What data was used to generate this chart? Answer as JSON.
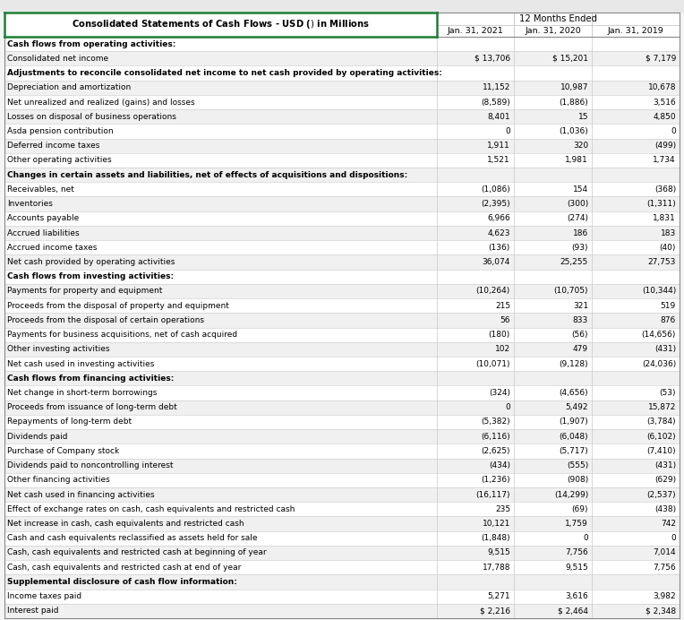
{
  "title": "Consolidated Statements of Cash Flows - USD ($) $ in Millions",
  "col_headers": [
    "Jan. 31, 2021",
    "Jan. 31, 2020",
    "Jan. 31, 2019"
  ],
  "rows": [
    {
      "label": "Cash flows from operating activities:",
      "vals": [
        "",
        "",
        ""
      ],
      "bold": true
    },
    {
      "label": "Consolidated net income",
      "vals": [
        "$ 13,706",
        "$ 15,201",
        "$ 7,179"
      ],
      "bold": false
    },
    {
      "label": "Adjustments to reconcile consolidated net income to net cash provided by operating activities:",
      "vals": [
        "",
        "",
        ""
      ],
      "bold": true
    },
    {
      "label": "Depreciation and amortization",
      "vals": [
        "11,152",
        "10,987",
        "10,678"
      ],
      "bold": false
    },
    {
      "label": "Net unrealized and realized (gains) and losses",
      "vals": [
        "(8,589)",
        "(1,886)",
        "3,516"
      ],
      "bold": false
    },
    {
      "label": "Losses on disposal of business operations",
      "vals": [
        "8,401",
        "15",
        "4,850"
      ],
      "bold": false
    },
    {
      "label": "Asda pension contribution",
      "vals": [
        "0",
        "(1,036)",
        "0"
      ],
      "bold": false
    },
    {
      "label": "Deferred income taxes",
      "vals": [
        "1,911",
        "320",
        "(499)"
      ],
      "bold": false
    },
    {
      "label": "Other operating activities",
      "vals": [
        "1,521",
        "1,981",
        "1,734"
      ],
      "bold": false
    },
    {
      "label": "Changes in certain assets and liabilities, net of effects of acquisitions and dispositions:",
      "vals": [
        "",
        "",
        ""
      ],
      "bold": true
    },
    {
      "label": "Receivables, net",
      "vals": [
        "(1,086)",
        "154",
        "(368)"
      ],
      "bold": false
    },
    {
      "label": "Inventories",
      "vals": [
        "(2,395)",
        "(300)",
        "(1,311)"
      ],
      "bold": false
    },
    {
      "label": "Accounts payable",
      "vals": [
        "6,966",
        "(274)",
        "1,831"
      ],
      "bold": false
    },
    {
      "label": "Accrued liabilities",
      "vals": [
        "4,623",
        "186",
        "183"
      ],
      "bold": false
    },
    {
      "label": "Accrued income taxes",
      "vals": [
        "(136)",
        "(93)",
        "(40)"
      ],
      "bold": false
    },
    {
      "label": "Net cash provided by operating activities",
      "vals": [
        "36,074",
        "25,255",
        "27,753"
      ],
      "bold": false
    },
    {
      "label": "Cash flows from investing activities:",
      "vals": [
        "",
        "",
        ""
      ],
      "bold": true
    },
    {
      "label": "Payments for property and equipment",
      "vals": [
        "(10,264)",
        "(10,705)",
        "(10,344)"
      ],
      "bold": false
    },
    {
      "label": "Proceeds from the disposal of property and equipment",
      "vals": [
        "215",
        "321",
        "519"
      ],
      "bold": false
    },
    {
      "label": "Proceeds from the disposal of certain operations",
      "vals": [
        "56",
        "833",
        "876"
      ],
      "bold": false
    },
    {
      "label": "Payments for business acquisitions, net of cash acquired",
      "vals": [
        "(180)",
        "(56)",
        "(14,656)"
      ],
      "bold": false
    },
    {
      "label": "Other investing activities",
      "vals": [
        "102",
        "479",
        "(431)"
      ],
      "bold": false
    },
    {
      "label": "Net cash used in investing activities",
      "vals": [
        "(10,071)",
        "(9,128)",
        "(24,036)"
      ],
      "bold": false
    },
    {
      "label": "Cash flows from financing activities:",
      "vals": [
        "",
        "",
        ""
      ],
      "bold": true
    },
    {
      "label": "Net change in short-term borrowings",
      "vals": [
        "(324)",
        "(4,656)",
        "(53)"
      ],
      "bold": false
    },
    {
      "label": "Proceeds from issuance of long-term debt",
      "vals": [
        "0",
        "5,492",
        "15,872"
      ],
      "bold": false
    },
    {
      "label": "Repayments of long-term debt",
      "vals": [
        "(5,382)",
        "(1,907)",
        "(3,784)"
      ],
      "bold": false
    },
    {
      "label": "Dividends paid",
      "vals": [
        "(6,116)",
        "(6,048)",
        "(6,102)"
      ],
      "bold": false
    },
    {
      "label": "Purchase of Company stock",
      "vals": [
        "(2,625)",
        "(5,717)",
        "(7,410)"
      ],
      "bold": false
    },
    {
      "label": "Dividends paid to noncontrolling interest",
      "vals": [
        "(434)",
        "(555)",
        "(431)"
      ],
      "bold": false
    },
    {
      "label": "Other financing activities",
      "vals": [
        "(1,236)",
        "(908)",
        "(629)"
      ],
      "bold": false
    },
    {
      "label": "Net cash used in financing activities",
      "vals": [
        "(16,117)",
        "(14,299)",
        "(2,537)"
      ],
      "bold": false
    },
    {
      "label": "Effect of exchange rates on cash, cash equivalents and restricted cash",
      "vals": [
        "235",
        "(69)",
        "(438)"
      ],
      "bold": false
    },
    {
      "label": "Net increase in cash, cash equivalents and restricted cash",
      "vals": [
        "10,121",
        "1,759",
        "742"
      ],
      "bold": false
    },
    {
      "label": "Cash and cash equivalents reclassified as assets held for sale",
      "vals": [
        "(1,848)",
        "0",
        "0"
      ],
      "bold": false
    },
    {
      "label": "Cash, cash equivalents and restricted cash at beginning of year",
      "vals": [
        "9,515",
        "7,756",
        "7,014"
      ],
      "bold": false
    },
    {
      "label": "Cash, cash equivalents and restricted cash at end of year",
      "vals": [
        "17,788",
        "9,515",
        "7,756"
      ],
      "bold": false
    },
    {
      "label": "Supplemental disclosure of cash flow information:",
      "vals": [
        "",
        "",
        ""
      ],
      "bold": true
    },
    {
      "label": "Income taxes paid",
      "vals": [
        "5,271",
        "3,616",
        "3,982"
      ],
      "bold": false
    },
    {
      "label": "Interest paid",
      "vals": [
        "$ 2,216",
        "$ 2,464",
        "$ 2,348"
      ],
      "bold": false
    }
  ],
  "title_border_color": "#1e7e34",
  "odd_row_bg": "#f0f0f0",
  "even_row_bg": "#ffffff",
  "grid_color": "#c8c8c8",
  "outer_border_color": "#888888",
  "text_color": "#000000",
  "header_top_strip_color": "#e0e0e0"
}
